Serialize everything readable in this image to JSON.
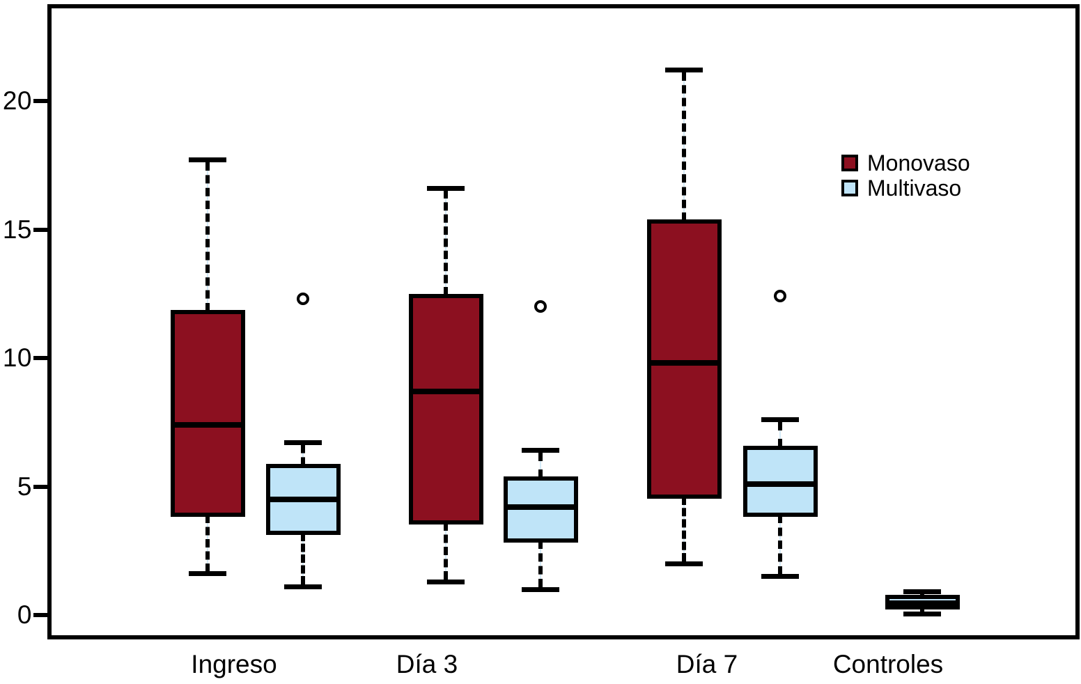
{
  "figure": {
    "background_color": "#ffffff",
    "axis_color": "#000000"
  },
  "legend": {
    "entries": [
      {
        "label": "Monovaso",
        "color": "#8c1020"
      },
      {
        "label": "Multivaso",
        "color": "#bfe4f8"
      }
    ],
    "position": "top-right"
  },
  "chart_data": {
    "type": "boxplot",
    "title": "",
    "xlabel": "",
    "ylabel": "",
    "categories": [
      "Ingreso",
      "Día 3",
      "Día 7",
      "Controles"
    ],
    "yticks": [
      0,
      5,
      10,
      15,
      20
    ],
    "ylim": [
      -0.8,
      23.8
    ],
    "grid": false,
    "legend_position": "top-right",
    "series": [
      {
        "name": "Monovaso",
        "color": "#8c1020",
        "boxes": [
          {
            "category": "Ingreso",
            "whisker_low": 1.6,
            "q1": 3.9,
            "median": 7.4,
            "q3": 11.8,
            "whisker_high": 17.7,
            "outliers": []
          },
          {
            "category": "Día 3",
            "whisker_low": 1.3,
            "q1": 3.6,
            "median": 8.7,
            "q3": 12.4,
            "whisker_high": 16.6,
            "outliers": []
          },
          {
            "category": "Día 7",
            "whisker_low": 2.0,
            "q1": 4.6,
            "median": 9.8,
            "q3": 15.3,
            "whisker_high": 21.2,
            "outliers": []
          },
          null
        ]
      },
      {
        "name": "Multivaso",
        "color": "#bfe4f8",
        "boxes": [
          {
            "category": "Ingreso",
            "whisker_low": 1.1,
            "q1": 3.2,
            "median": 4.5,
            "q3": 5.8,
            "whisker_high": 6.7,
            "outliers": [
              12.3
            ]
          },
          {
            "category": "Día 3",
            "whisker_low": 1.0,
            "q1": 2.9,
            "median": 4.2,
            "q3": 5.3,
            "whisker_high": 6.4,
            "outliers": [
              12.0
            ]
          },
          {
            "category": "Día 7",
            "whisker_low": 1.5,
            "q1": 3.9,
            "median": 5.1,
            "q3": 6.5,
            "whisker_high": 7.6,
            "outliers": [
              12.4
            ]
          },
          {
            "category": "Controles",
            "whisker_low": 0.05,
            "q1": 0.3,
            "median": 0.45,
            "q3": 0.7,
            "whisker_high": 0.9,
            "outliers": []
          }
        ]
      }
    ]
  }
}
